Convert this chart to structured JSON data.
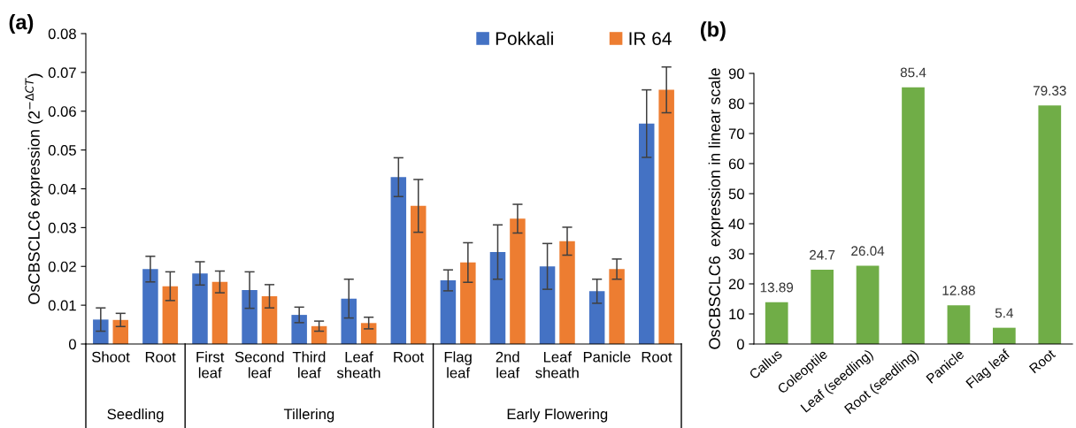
{
  "chart_data": [
    {
      "type": "bar",
      "title": "(a)",
      "ylabel": "OsCBSCLC6 expression (2$^{−ΔCT}$)",
      "categories": [
        "Shoot",
        "Root",
        "First\nleaf",
        "Second\nleaf",
        "Third\nleaf",
        "Leaf\nsheath",
        "Root",
        "Flag\nleaf",
        "2nd\nleaf",
        "Leaf\nsheath",
        "Panicle",
        "Root"
      ],
      "series": [
        {
          "name": "Pokkali",
          "color": "#4472c4",
          "values": [
            0.0063,
            0.0193,
            0.0182,
            0.0139,
            0.0075,
            0.0117,
            0.043,
            0.0164,
            0.0237,
            0.02,
            0.0136,
            0.0568
          ],
          "errors": [
            0.003,
            0.0033,
            0.003,
            0.0047,
            0.002,
            0.005,
            0.005,
            0.0027,
            0.007,
            0.0059,
            0.0031,
            0.0087
          ]
        },
        {
          "name": "IR 64",
          "color": "#ed7d31",
          "values": [
            0.0062,
            0.0149,
            0.016,
            0.0123,
            0.0046,
            0.0054,
            0.0356,
            0.021,
            0.0323,
            0.0265,
            0.0193,
            0.0655
          ],
          "errors": [
            0.0017,
            0.0037,
            0.0028,
            0.003,
            0.0013,
            0.0015,
            0.0068,
            0.0051,
            0.0037,
            0.0036,
            0.0026,
            0.0059
          ]
        }
      ],
      "annotations": [
        "Seedling",
        "Tillering",
        "Early Flowering"
      ],
      "ylim": [
        0,
        0.08
      ],
      "yticks": [
        0,
        0.01,
        0.02,
        0.03,
        0.04,
        0.05,
        0.06,
        0.07,
        0.08
      ],
      "grid": false,
      "legend": "top"
    },
    {
      "type": "bar",
      "title": "(b)",
      "ylabel": "OsCBSCLC6  expression in linear scale",
      "categories": [
        "Callus",
        "Coleoptile",
        "Leaf (seedling)",
        "Root (seedling)",
        "Panicle",
        "Flag leaf",
        "Root"
      ],
      "values": [
        13.89,
        24.7,
        26.04,
        85.4,
        12.88,
        5.4,
        79.33
      ],
      "color": "#70ad47",
      "ylim": [
        0,
        90
      ],
      "yticks": [
        0,
        10,
        20,
        30,
        40,
        50,
        60,
        70,
        80,
        90
      ],
      "grid": false,
      "data_labels": true
    }
  ]
}
